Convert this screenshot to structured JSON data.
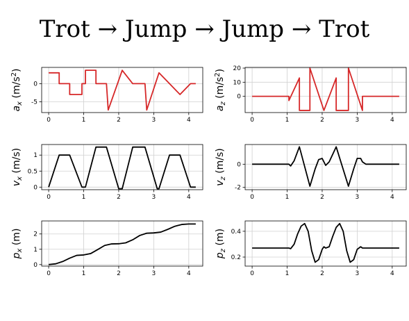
{
  "title": "Trot → Jump → Jump → Trot",
  "chart_data": [
    {
      "type": "line",
      "id": "ax",
      "ylabel": {
        "var": "a",
        "sub": "x",
        "unit": " (m/s",
        "sup": "2",
        "close": ")"
      },
      "xlim": [
        -0.2,
        4.4
      ],
      "ylim": [
        -8.0,
        4.5
      ],
      "xticks": [
        0,
        1,
        2,
        3,
        4
      ],
      "yticks": [
        -5,
        0
      ],
      "grid": true,
      "color": "#d62728",
      "x": [
        0,
        0.3,
        0.3,
        0.6,
        0.6,
        0.95,
        0.95,
        1.05,
        1.05,
        1.35,
        1.35,
        1.65,
        1.7,
        2.1,
        2.1,
        2.4,
        2.4,
        2.75,
        2.8,
        3.15,
        3.15,
        3.45,
        3.45,
        3.75,
        3.75,
        4.05,
        4.05,
        4.2
      ],
      "y": [
        3,
        3,
        0,
        0,
        -3,
        -3,
        0,
        0,
        3.7,
        3.7,
        0,
        0,
        -7.3,
        3.7,
        3.7,
        0,
        0,
        0,
        -7.3,
        3,
        3,
        0,
        0,
        -3,
        -3,
        0,
        0,
        0
      ]
    },
    {
      "type": "line",
      "id": "az",
      "ylabel": {
        "var": "a",
        "sub": "z",
        "unit": " (m/s",
        "sup": "2",
        "close": ")"
      },
      "xlim": [
        -0.2,
        4.4
      ],
      "ylim": [
        -11.5,
        20.5
      ],
      "xticks": [
        0,
        1,
        2,
        3,
        4
      ],
      "yticks": [
        0,
        10,
        20
      ],
      "grid": true,
      "color": "#d62728",
      "x": [
        0,
        1.05,
        1.05,
        1.35,
        1.35,
        1.65,
        1.65,
        2.05,
        2.4,
        2.4,
        2.75,
        2.75,
        3.15,
        3.15,
        4.2
      ],
      "y": [
        0,
        0,
        -3,
        13,
        -10,
        -10,
        20,
        -10,
        13,
        -10,
        -10,
        20,
        -10,
        0,
        0
      ]
    },
    {
      "type": "line",
      "id": "vx",
      "ylabel": {
        "var": "v",
        "sub": "x",
        "unit": " (m/s)",
        "sup": "",
        "close": ""
      },
      "xlim": [
        -0.2,
        4.4
      ],
      "ylim": [
        -0.08,
        1.33
      ],
      "xticks": [
        0,
        1,
        2,
        3,
        4
      ],
      "yticks": [
        0.0,
        0.5,
        1.0
      ],
      "grid": true,
      "color": "#000000",
      "x": [
        0,
        0.3,
        0.6,
        0.95,
        1.05,
        1.35,
        1.65,
        2.0,
        2.1,
        2.4,
        2.75,
        3.1,
        3.15,
        3.45,
        3.75,
        4.05,
        4.2
      ],
      "y": [
        0,
        1.0,
        1.0,
        0,
        0,
        1.25,
        1.25,
        -0.05,
        -0.05,
        1.25,
        1.25,
        -0.05,
        -0.05,
        1.0,
        1.0,
        0,
        0
      ]
    },
    {
      "type": "line",
      "id": "vz",
      "ylabel": {
        "var": "v",
        "sub": "z",
        "unit": " (m/s)",
        "sup": "",
        "close": ""
      },
      "xlim": [
        -0.2,
        4.4
      ],
      "ylim": [
        -2.2,
        1.7
      ],
      "xticks": [
        0,
        1,
        2,
        3,
        4
      ],
      "yticks": [
        -2,
        0
      ],
      "grid": true,
      "color": "#000000",
      "x": [
        0,
        1.0,
        1.05,
        1.1,
        1.2,
        1.35,
        1.65,
        1.8,
        1.9,
        2.0,
        2.05,
        2.1,
        2.2,
        2.4,
        2.75,
        2.9,
        3.0,
        3.1,
        3.15,
        3.25,
        3.4,
        4.2
      ],
      "y": [
        0,
        0,
        0,
        -0.15,
        0.3,
        1.5,
        -1.9,
        -0.4,
        0.4,
        0.5,
        0.2,
        -0.1,
        0.2,
        1.5,
        -1.9,
        -0.4,
        0.5,
        0.5,
        0.2,
        0,
        0,
        0
      ]
    },
    {
      "type": "line",
      "id": "px",
      "ylabel": {
        "var": "p",
        "sub": "x",
        "unit": " (m)",
        "sup": "",
        "close": ""
      },
      "xlim": [
        -0.2,
        4.4
      ],
      "ylim": [
        -0.1,
        2.85
      ],
      "xticks": [
        0,
        1,
        2,
        3,
        4
      ],
      "yticks": [
        0,
        1,
        2
      ],
      "grid": true,
      "color": "#000000",
      "x": [
        0,
        0.2,
        0.4,
        0.6,
        0.8,
        1.0,
        1.2,
        1.4,
        1.6,
        1.8,
        2.0,
        2.2,
        2.4,
        2.6,
        2.8,
        3.0,
        3.2,
        3.4,
        3.6,
        3.8,
        4.0,
        4.2
      ],
      "y": [
        0,
        0.05,
        0.2,
        0.42,
        0.6,
        0.63,
        0.72,
        0.98,
        1.25,
        1.35,
        1.36,
        1.42,
        1.62,
        1.9,
        2.05,
        2.07,
        2.12,
        2.3,
        2.5,
        2.62,
        2.65,
        2.65
      ]
    },
    {
      "type": "line",
      "id": "pz",
      "ylabel": {
        "var": "p",
        "sub": "z",
        "unit": " (m)",
        "sup": "",
        "close": ""
      },
      "xlim": [
        -0.2,
        4.4
      ],
      "ylim": [
        0.13,
        0.48
      ],
      "xticks": [
        0,
        1,
        2,
        3,
        4
      ],
      "yticks": [
        0.2,
        0.4
      ],
      "grid": true,
      "color": "#000000",
      "x": [
        0,
        1.0,
        1.05,
        1.1,
        1.2,
        1.3,
        1.4,
        1.5,
        1.6,
        1.7,
        1.8,
        1.9,
        2.0,
        2.05,
        2.1,
        2.2,
        2.3,
        2.4,
        2.5,
        2.6,
        2.7,
        2.8,
        2.9,
        3.0,
        3.1,
        3.15,
        3.2,
        3.3,
        4.2
      ],
      "y": [
        0.27,
        0.27,
        0.27,
        0.265,
        0.3,
        0.38,
        0.44,
        0.46,
        0.4,
        0.25,
        0.16,
        0.18,
        0.26,
        0.28,
        0.27,
        0.28,
        0.36,
        0.43,
        0.46,
        0.4,
        0.25,
        0.16,
        0.18,
        0.26,
        0.28,
        0.27,
        0.27,
        0.27,
        0.27
      ]
    }
  ]
}
